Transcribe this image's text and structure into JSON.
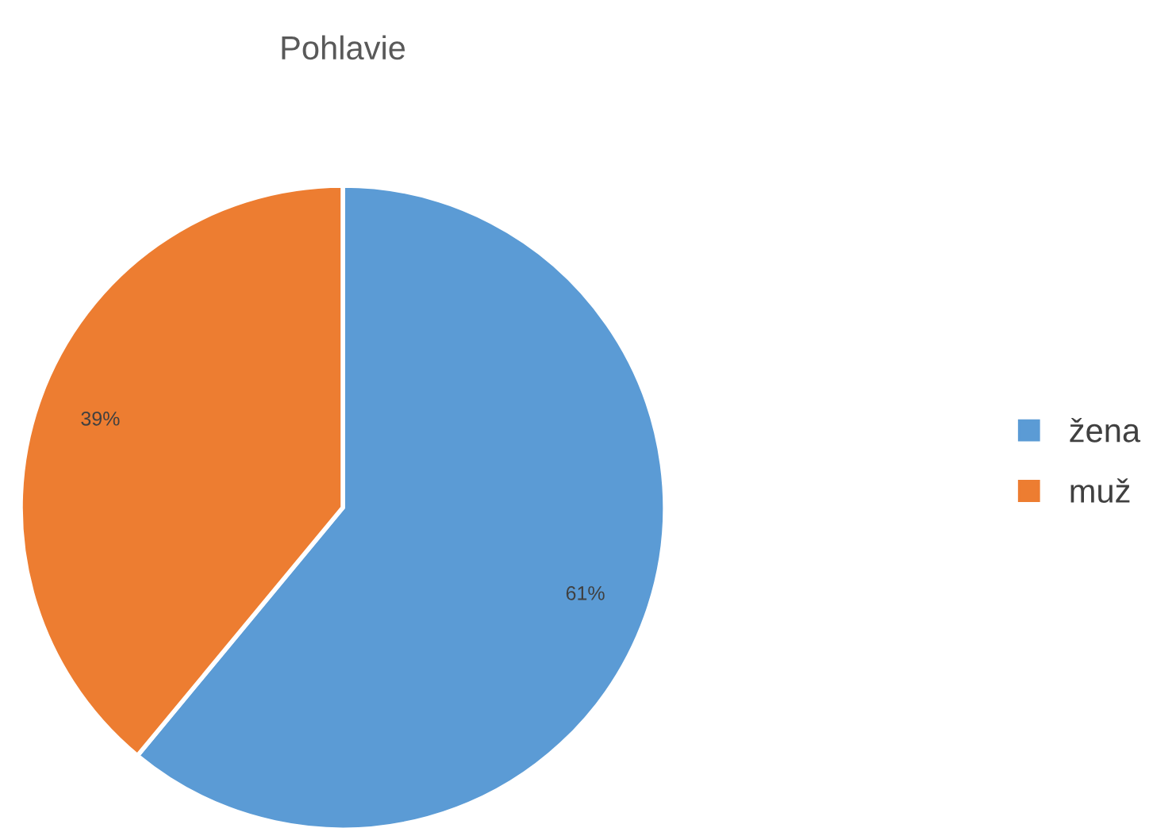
{
  "chart_data": {
    "type": "pie",
    "title": "Pohlavie",
    "categories": [
      "žena",
      "muž"
    ],
    "values": [
      61,
      39
    ],
    "colors": [
      "#5b9bd5",
      "#ed7d31"
    ],
    "value_labels": [
      "61%",
      "39%"
    ],
    "legend": "right"
  }
}
